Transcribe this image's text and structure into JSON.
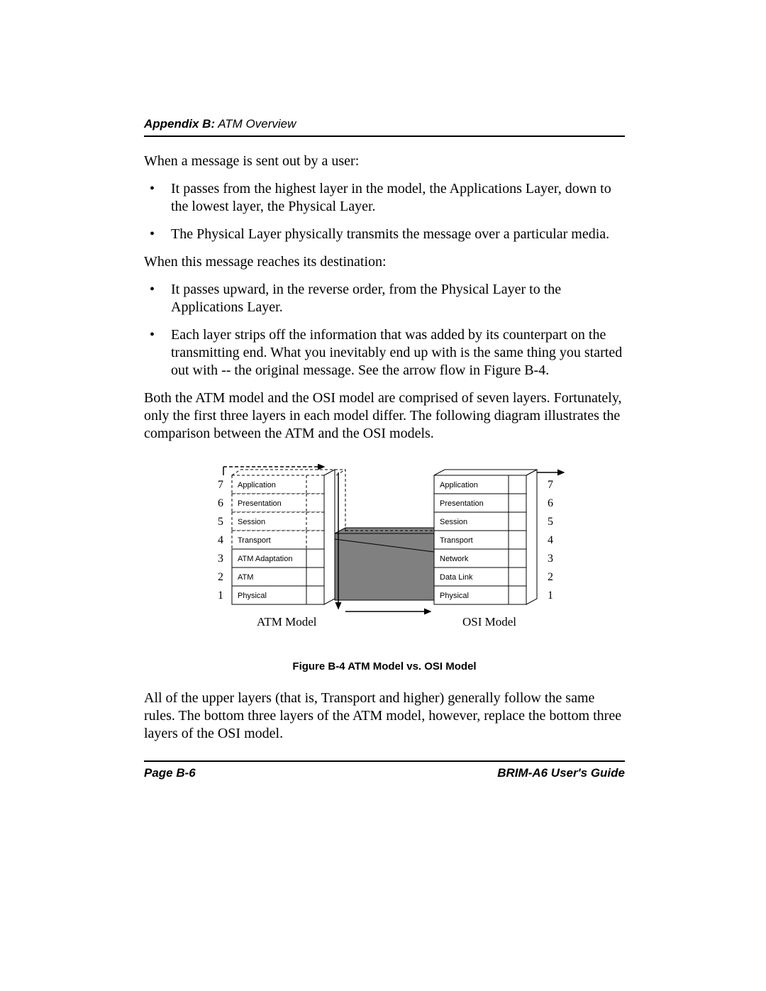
{
  "header": {
    "bold": "Appendix B:",
    "rest": " ATM Overview"
  },
  "p1": "When a message is sent out by a user:",
  "list1": [
    "It passes from the highest layer in the model, the Applications Layer, down to the lowest layer, the Physical Layer.",
    "The Physical Layer physically transmits the message over a particular media."
  ],
  "p2": "When this message reaches its destination:",
  "list2": [
    "It passes upward, in the reverse order, from the Physical Layer to the Applications Layer.",
    "Each layer strips off the information that was added by its counterpart on the transmitting end. What you inevitably end up with is the same thing you started out with -- the original message. See the arrow flow in Figure B-4."
  ],
  "p3": "Both the ATM model and the OSI model are comprised of seven layers. Fortunately, only the first three layers in each model differ. The following diagram illustrates the comparison between the ATM and the OSI models.",
  "figure": {
    "caption": "Figure B-4    ATM Model vs. OSI Model",
    "left_label": "ATM Model",
    "right_label": "OSI Model",
    "numbers": [
      "7",
      "6",
      "5",
      "4",
      "3",
      "2",
      "1"
    ],
    "atm_layers": [
      "Application",
      "Presentation",
      "Session",
      "Transport",
      "ATM Adaptation",
      "ATM",
      "Physical"
    ],
    "osi_layers": [
      "Application",
      "Presentation",
      "Session",
      "Transport",
      "Network",
      "Data Link",
      "Physical"
    ],
    "shade_color": "#808080",
    "dashed_layers_count": 4
  },
  "p4": "All of the upper layers (that is, Transport and higher) generally follow the same rules. The bottom three layers of the ATM model, however, replace the bottom three layers of the OSI model.",
  "footer": {
    "left": "Page B-6",
    "right": "BRIM-A6 User's Guide"
  }
}
